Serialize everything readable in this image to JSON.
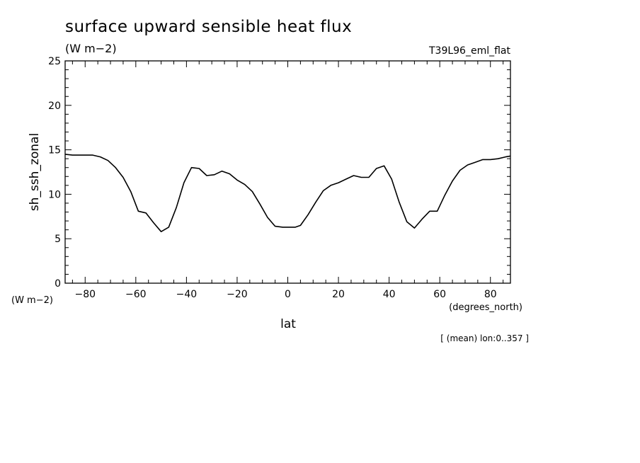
{
  "chart_data": {
    "type": "line",
    "title": "surface upward sensible heat flux",
    "units": "(W m−2)",
    "experiment": "T39L96_eml_flat",
    "ylabel": "sh_ssh_zonal",
    "yunits": "(W m−2)",
    "xlabel": "lat",
    "xunits": "(degrees_north)",
    "note": "[ (mean) lon:0..357 ]",
    "xlim": [
      -87.9,
      87.9
    ],
    "ylim": [
      0,
      25
    ],
    "xticks": [
      -80,
      -60,
      -40,
      -20,
      0,
      20,
      40,
      60,
      80
    ],
    "yticks": [
      0,
      5,
      10,
      15,
      20,
      25
    ],
    "xtick_labels": [
      "−80",
      "−60",
      "−40",
      "−20",
      "0",
      "20",
      "40",
      "60",
      "80"
    ],
    "ytick_labels": [
      "0",
      "5",
      "10",
      "15",
      "20",
      "25"
    ],
    "line_color": "#000000",
    "series": [
      {
        "x": [
          -87.9,
          -85,
          -82,
          -80,
          -77,
          -74,
          -71,
          -68,
          -65,
          -62,
          -59,
          -56,
          -53,
          -50,
          -47,
          -44,
          -41,
          -38,
          -35,
          -32,
          -29,
          -26,
          -23,
          -20,
          -17,
          -14,
          -11,
          -8,
          -5,
          -2,
          1,
          3,
          5,
          8,
          11,
          14,
          17,
          20,
          23,
          26,
          29,
          32,
          35,
          38,
          41,
          44,
          47,
          50,
          53,
          56,
          59,
          62,
          65,
          68,
          71,
          74,
          77,
          80,
          83,
          86,
          87.9
        ],
        "y": [
          14.5,
          14.4,
          14.4,
          14.4,
          14.4,
          14.2,
          13.8,
          13.0,
          11.9,
          10.3,
          8.1,
          7.9,
          6.8,
          5.8,
          6.3,
          8.5,
          11.3,
          13.0,
          12.9,
          12.1,
          12.2,
          12.6,
          12.3,
          11.6,
          11.1,
          10.3,
          8.9,
          7.4,
          6.4,
          6.3,
          6.3,
          6.3,
          6.5,
          7.7,
          9.1,
          10.4,
          11.0,
          11.3,
          11.7,
          12.1,
          11.9,
          11.9,
          12.9,
          13.2,
          11.7,
          9.1,
          6.9,
          6.2,
          7.2,
          8.1,
          8.1,
          9.9,
          11.5,
          12.7,
          13.3,
          13.6,
          13.9,
          13.9,
          14.0,
          14.2,
          14.3
        ]
      }
    ]
  }
}
